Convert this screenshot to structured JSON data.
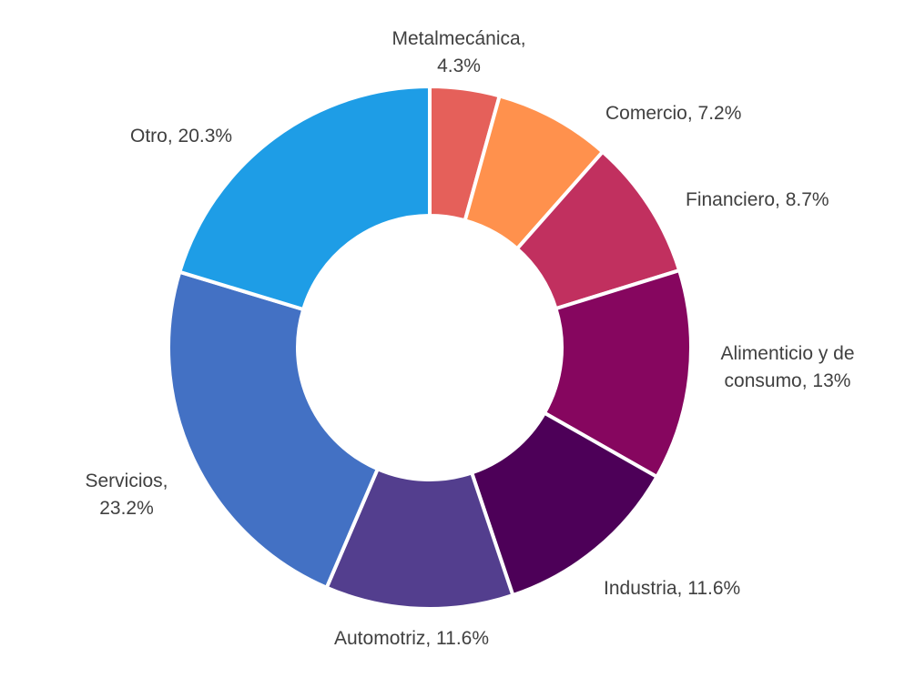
{
  "chart_data": {
    "type": "pie",
    "variant": "donut",
    "title": "",
    "legend": "none",
    "start_angle_deg": 0,
    "direction": "clockwise",
    "slices": [
      {
        "name": "Metalmecánica",
        "value": 4.3,
        "label_lines": [
          "Metalmecánica,",
          "4.3%"
        ],
        "color": "#E5605A"
      },
      {
        "name": "Comercio",
        "value": 7.2,
        "label_lines": [
          "Comercio, 7.2%"
        ],
        "color": "#FF914D"
      },
      {
        "name": "Financiero",
        "value": 8.7,
        "label_lines": [
          "Financiero, 8.7%"
        ],
        "color": "#C1305F"
      },
      {
        "name": "Alimenticio y de consumo",
        "value": 13,
        "label_lines": [
          "Alimenticio y de",
          "consumo, 13%"
        ],
        "color": "#86065F"
      },
      {
        "name": "Industria",
        "value": 11.6,
        "label_lines": [
          "Industria, 11.6%"
        ],
        "color": "#4D0058"
      },
      {
        "name": "Automotriz",
        "value": 11.6,
        "label_lines": [
          "Automotriz, 11.6%"
        ],
        "color": "#533E8E"
      },
      {
        "name": "Servicios",
        "value": 23.2,
        "label_lines": [
          "Servicios,",
          "23.2%"
        ],
        "color": "#4371C4"
      },
      {
        "name": "Otro",
        "value": 20.3,
        "label_lines": [
          "Otro, 20.3%"
        ],
        "color": "#1E9DE6"
      }
    ]
  }
}
